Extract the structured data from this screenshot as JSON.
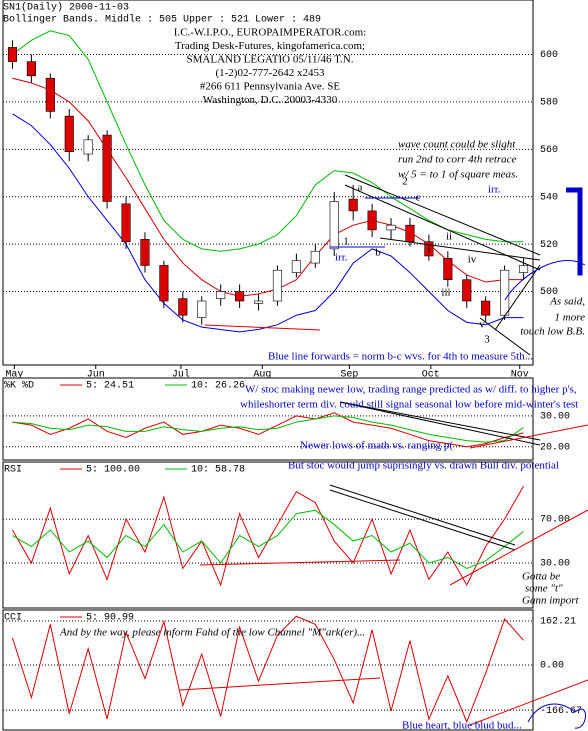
{
  "header": {
    "symbol": "SN1(Daily) 2000-11-03",
    "indicator": "Bollinger Bands. Middle : 505   Upper : 521   Lower : 489"
  },
  "info_box": [
    "I.C.-W.I.P.O., EUROPAIMPERATOR.com:",
    "Trading Desk-Futures, kingofamerica.com;",
    "SMALAND LEGATIO 05/11/46 T.N.",
    "(1-2)02-777-2642 x2453",
    "#266 611 Pennsylvania Ave. SE",
    "Washington, D.C. 20003-4330"
  ],
  "chart_data": [
    {
      "type": "candlestick",
      "up_color": "#ffffff",
      "down_color": "#dd0000",
      "open": [
        603,
        597,
        590,
        574,
        558,
        566,
        537,
        522,
        511,
        497,
        489,
        497,
        500,
        495,
        496,
        508,
        512,
        518,
        539,
        534,
        526,
        528,
        521,
        514,
        505,
        496,
        490,
        508
      ],
      "high": [
        606,
        600,
        592,
        577,
        566,
        568,
        540,
        525,
        513,
        500,
        498,
        503,
        503,
        499,
        511,
        516,
        520,
        542,
        545,
        537,
        531,
        531,
        524,
        517,
        507,
        498,
        511,
        514
      ],
      "low": [
        594,
        588,
        573,
        555,
        555,
        535,
        518,
        508,
        493,
        487,
        486,
        494,
        493,
        492,
        494,
        506,
        510,
        515,
        530,
        523,
        522,
        519,
        513,
        502,
        493,
        487,
        488,
        505
      ],
      "close": [
        597,
        591,
        576,
        559,
        564,
        538,
        521,
        511,
        496,
        490,
        496,
        500,
        496,
        496,
        509,
        513,
        517,
        538,
        534,
        526,
        528,
        521,
        515,
        505,
        496,
        490,
        509,
        511
      ],
      "series": [
        {
          "color": "#00bb00",
          "values": [
            600,
            606,
            610,
            608,
            598,
            580,
            562,
            545,
            530,
            522,
            518,
            517,
            518,
            520,
            524,
            532,
            545,
            551,
            550,
            546,
            540,
            535,
            530,
            526,
            524,
            522,
            521,
            521
          ]
        },
        {
          "color": "#cc0000",
          "values": [
            590,
            588,
            585,
            580,
            572,
            560,
            548,
            535,
            522,
            512,
            505,
            500,
            498,
            499,
            501,
            505,
            515,
            524,
            528,
            530,
            528,
            525,
            520,
            513,
            507,
            504,
            505,
            505
          ]
        },
        {
          "color": "#0000dd",
          "values": [
            575,
            570,
            562,
            552,
            540,
            530,
            520,
            505,
            495,
            488,
            485,
            484,
            483,
            484,
            486,
            490,
            492,
            500,
            512,
            518,
            515,
            508,
            500,
            492,
            487,
            486,
            489,
            489
          ]
        }
      ],
      "xlim": [
        -0.5,
        27.5
      ],
      "ylim": [
        469,
        623
      ],
      "yticks": [
        500,
        520,
        540,
        560,
        580,
        600
      ],
      "xticks": [
        {
          "value": 0.1,
          "label": "May"
        },
        {
          "value": 4.4,
          "label": "Jun"
        },
        {
          "value": 8.9,
          "label": "Jul"
        },
        {
          "value": 13.2,
          "label": "Aug"
        },
        {
          "value": 17.8,
          "label": "Sep"
        },
        {
          "value": 22.1,
          "label": "Oct"
        },
        {
          "value": 26.8,
          "label": "Nov"
        }
      ],
      "annotations": [
        "wave count could be slight",
        "run 2nd to corr 4th retrace",
        "w/ 5 = to 1 of square meas.",
        "irr.",
        "irr.",
        "a",
        "b",
        "c",
        "1",
        "2",
        "i",
        "ii",
        "iii",
        "iv",
        "v",
        "3",
        "As said,",
        "1 more",
        "touch low B.B.",
        "Blue line forwards = norm b-c wvs. for 4th to measure 5th..."
      ]
    },
    {
      "type": "line",
      "legend_label": "%K %D",
      "series": [
        {
          "name": "5: 24.51",
          "color": "#dd0000",
          "values": [
            28,
            27,
            24,
            26,
            29,
            25,
            23,
            26,
            28,
            24,
            25,
            27,
            26,
            24,
            27,
            30,
            29,
            31,
            28,
            27,
            26,
            24,
            22,
            21,
            20,
            21,
            23,
            24.51
          ]
        },
        {
          "name": "10: 26.26",
          "color": "#00bb00",
          "values": [
            28,
            27.5,
            26,
            25.5,
            27,
            26.5,
            25,
            25,
            26.5,
            25.5,
            25,
            26,
            26.5,
            25.5,
            26,
            28,
            29,
            30,
            29.5,
            28,
            27,
            25.5,
            24,
            23,
            22,
            21.5,
            22,
            26.26
          ]
        }
      ],
      "xlim": [
        -0.5,
        27.5
      ],
      "ylim": [
        15.7,
        42.3
      ],
      "yticks": [
        {
          "value": 20,
          "label": "20.00"
        },
        {
          "value": 30,
          "label": "30.00"
        }
      ],
      "annotations": [
        "W/ stoc making newer low, trading range predicted as w/ diff. to higher p's,",
        "whileshorter term div. could still signal seasonal low before mid-winter's test",
        "Newer lows of math vs. ranging p(",
        "But stoc would jump suprisingly vs. drawn Bull div. potential"
      ]
    },
    {
      "type": "line",
      "legend_label": "RSI",
      "series": [
        {
          "name": "5: 100.00",
          "color": "#dd0000",
          "values": [
            60,
            30,
            80,
            20,
            55,
            15,
            70,
            40,
            90,
            25,
            50,
            10,
            75,
            35,
            65,
            95,
            85,
            50,
            30,
            70,
            20,
            60,
            15,
            40,
            10,
            45,
            70,
            100
          ]
        },
        {
          "name": "10: 58.78",
          "color": "#00bb00",
          "values": [
            55,
            45,
            60,
            40,
            50,
            35,
            55,
            45,
            65,
            40,
            50,
            30,
            55,
            45,
            55,
            75,
            78,
            65,
            50,
            55,
            40,
            48,
            30,
            35,
            25,
            32,
            45,
            58.78
          ]
        }
      ],
      "xlim": [
        -0.5,
        27.5
      ],
      "ylim": [
        -11,
        122
      ],
      "yticks": [
        {
          "value": 30,
          "label": "30.00"
        },
        {
          "value": 70,
          "label": "70.00"
        }
      ],
      "annotations": [
        "Gotta be",
        "some \"t\"",
        "Gann import"
      ]
    },
    {
      "type": "line",
      "legend_label": "CCI",
      "series": [
        {
          "name": "5: 90.99",
          "color": "#dd0000",
          "values": [
            100,
            -120,
            150,
            -180,
            60,
            -200,
            120,
            -50,
            160,
            -150,
            40,
            -190,
            140,
            -60,
            110,
            180,
            150,
            20,
            -140,
            130,
            -170,
            90,
            -200,
            -40,
            -210,
            -30,
            170,
            90.99
          ]
        }
      ],
      "xlim": [
        -0.5,
        27.5
      ],
      "ylim": [
        -240,
        203
      ],
      "yticks": [
        {
          "value": -166.67,
          "label": "-166.67"
        },
        {
          "value": 0,
          "label": "0.00"
        },
        {
          "value": 162.21,
          "label": "162.21"
        }
      ],
      "annotations": [
        "And by the way, please inform Fahd of the low Channel \"M\"ark(er)...",
        "Blue heart, blue blud bud..."
      ]
    }
  ]
}
